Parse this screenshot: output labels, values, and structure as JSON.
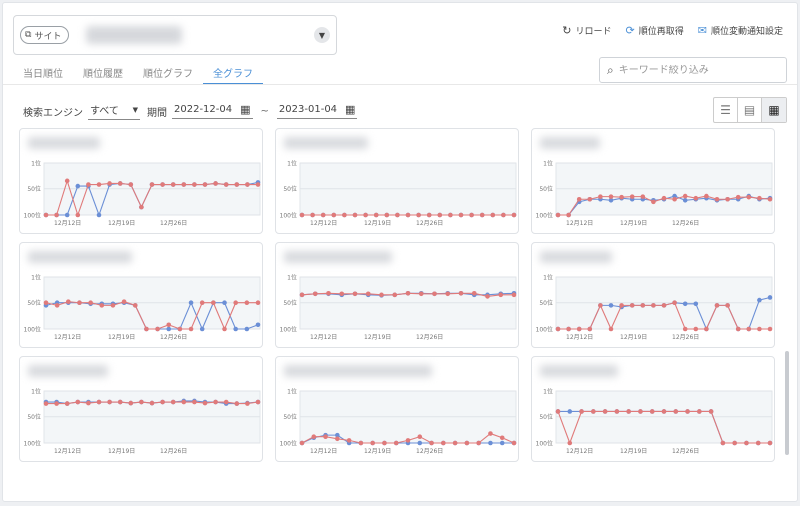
{
  "header": {
    "site_chip_label": "サイト",
    "site_dropdown_icon": "chevron-down-icon",
    "actions": {
      "reload": "リロード",
      "refetch": "順位再取得",
      "notify": "順位変動通知設定"
    }
  },
  "tabs": [
    {
      "label": "当日順位",
      "active": false
    },
    {
      "label": "順位履歴",
      "active": false
    },
    {
      "label": "順位グラフ",
      "active": false
    },
    {
      "label": "全グラフ",
      "active": true
    }
  ],
  "search": {
    "placeholder": "キーワード絞り込み"
  },
  "filters": {
    "engine_label": "検索エンジン",
    "engine_value": "すべて",
    "period_label": "期間",
    "date_from": "2022-12-04",
    "date_sep": "~",
    "date_to": "2023-01-04"
  },
  "view_modes": [
    {
      "icon": "list-view-icon",
      "active": false
    },
    {
      "icon": "two-column-view-icon",
      "active": false
    },
    {
      "icon": "grid-view-icon",
      "active": true
    }
  ],
  "colors": {
    "blue": "#6b8fd6",
    "red": "#e07a7a",
    "accent": "#4a8fd6"
  },
  "chart_axis": {
    "y_ticks": [
      "1位",
      "50位",
      "100位"
    ],
    "x_ticks": [
      "12月12日",
      "12月19日",
      "12月26日"
    ]
  },
  "chart_data": [
    {
      "type": "line",
      "ylim": [
        100,
        1
      ],
      "grid": true,
      "series": [
        {
          "values": [
            100,
            100,
            100,
            45,
            45,
            100,
            42,
            40,
            42,
            85,
            42,
            42,
            42,
            42,
            42,
            42,
            40,
            42,
            42,
            42,
            38
          ]
        },
        {
          "values": [
            100,
            100,
            35,
            100,
            42,
            42,
            40,
            40,
            42,
            85,
            42,
            42,
            42,
            42,
            42,
            42,
            40,
            42,
            42,
            42,
            42
          ]
        }
      ]
    },
    {
      "type": "line",
      "ylim": [
        100,
        1
      ],
      "grid": true,
      "series": [
        {
          "values": [
            100,
            100,
            100,
            100,
            100,
            100,
            100,
            100,
            100,
            100,
            100,
            100,
            100,
            100,
            100,
            100,
            100,
            100,
            100,
            100,
            100
          ]
        },
        {
          "values": [
            100,
            100,
            100,
            100,
            100,
            100,
            100,
            100,
            100,
            100,
            100,
            100,
            100,
            100,
            100,
            100,
            100,
            100,
            100,
            100,
            100
          ]
        }
      ]
    },
    {
      "type": "line",
      "ylim": [
        100,
        1
      ],
      "grid": true,
      "series": [
        {
          "values": [
            100,
            100,
            75,
            70,
            70,
            72,
            68,
            70,
            70,
            72,
            70,
            64,
            72,
            70,
            68,
            72,
            70,
            70,
            64,
            70,
            68
          ]
        },
        {
          "values": [
            100,
            100,
            70,
            70,
            65,
            65,
            66,
            65,
            65,
            75,
            68,
            70,
            64,
            68,
            64,
            70,
            70,
            66,
            66,
            68,
            70
          ]
        }
      ]
    },
    {
      "type": "line",
      "ylim": [
        100,
        1
      ],
      "grid": true,
      "series": [
        {
          "values": [
            55,
            50,
            50,
            50,
            52,
            52,
            52,
            50,
            55,
            100,
            100,
            100,
            100,
            50,
            100,
            50,
            50,
            100,
            100,
            92
          ]
        },
        {
          "values": [
            50,
            55,
            48,
            50,
            50,
            55,
            55,
            48,
            55,
            100,
            100,
            92,
            100,
            100,
            50,
            50,
            100,
            50,
            50,
            50
          ]
        }
      ]
    },
    {
      "type": "line",
      "ylim": [
        100,
        1
      ],
      "grid": true,
      "series": [
        {
          "values": [
            35,
            33,
            33,
            35,
            33,
            35,
            36,
            35,
            32,
            32,
            33,
            32,
            32,
            35,
            35,
            33,
            32
          ]
        },
        {
          "values": [
            35,
            33,
            32,
            33,
            33,
            33,
            35,
            35,
            32,
            33,
            33,
            33,
            32,
            32,
            38,
            35,
            35
          ]
        }
      ]
    },
    {
      "type": "line",
      "ylim": [
        100,
        1
      ],
      "grid": true,
      "series": [
        {
          "values": [
            100,
            100,
            100,
            100,
            55,
            55,
            58,
            55,
            55,
            55,
            55,
            50,
            52,
            52,
            100,
            55,
            55,
            100,
            100,
            45,
            40
          ]
        },
        {
          "values": [
            100,
            100,
            100,
            100,
            55,
            100,
            55,
            55,
            55,
            55,
            55,
            50,
            100,
            100,
            100,
            55,
            55,
            100,
            100,
            100,
            100
          ]
        }
      ]
    },
    {
      "type": "line",
      "ylim": [
        100,
        1
      ],
      "grid": true,
      "series": [
        {
          "values": [
            22,
            22,
            25,
            22,
            22,
            22,
            22,
            22,
            24,
            22,
            24,
            22,
            22,
            20,
            20,
            22,
            22,
            25,
            25,
            24,
            22
          ]
        },
        {
          "values": [
            25,
            25,
            25,
            22,
            24,
            22,
            22,
            22,
            24,
            22,
            24,
            22,
            22,
            22,
            22,
            24,
            22,
            22,
            25,
            25,
            22
          ]
        }
      ]
    },
    {
      "type": "line",
      "ylim": [
        100,
        1
      ],
      "grid": true,
      "series": [
        {
          "values": [
            100,
            90,
            85,
            85,
            100,
            100,
            100,
            100,
            100,
            100,
            100,
            100,
            100,
            100,
            100,
            100,
            100,
            100,
            100
          ]
        },
        {
          "values": [
            100,
            88,
            88,
            92,
            95,
            100,
            100,
            100,
            100,
            95,
            88,
            100,
            100,
            100,
            100,
            100,
            82,
            90,
            100
          ]
        }
      ]
    },
    {
      "type": "line",
      "ylim": [
        100,
        1
      ],
      "grid": true,
      "series": [
        {
          "values": [
            40,
            40,
            40,
            40,
            40,
            40,
            40,
            40,
            40,
            40,
            40,
            40,
            40,
            40,
            100,
            100,
            100,
            100,
            100
          ]
        },
        {
          "values": [
            40,
            100,
            40,
            40,
            40,
            40,
            40,
            40,
            40,
            40,
            40,
            40,
            40,
            40,
            100,
            100,
            100,
            100,
            100
          ]
        }
      ]
    }
  ]
}
